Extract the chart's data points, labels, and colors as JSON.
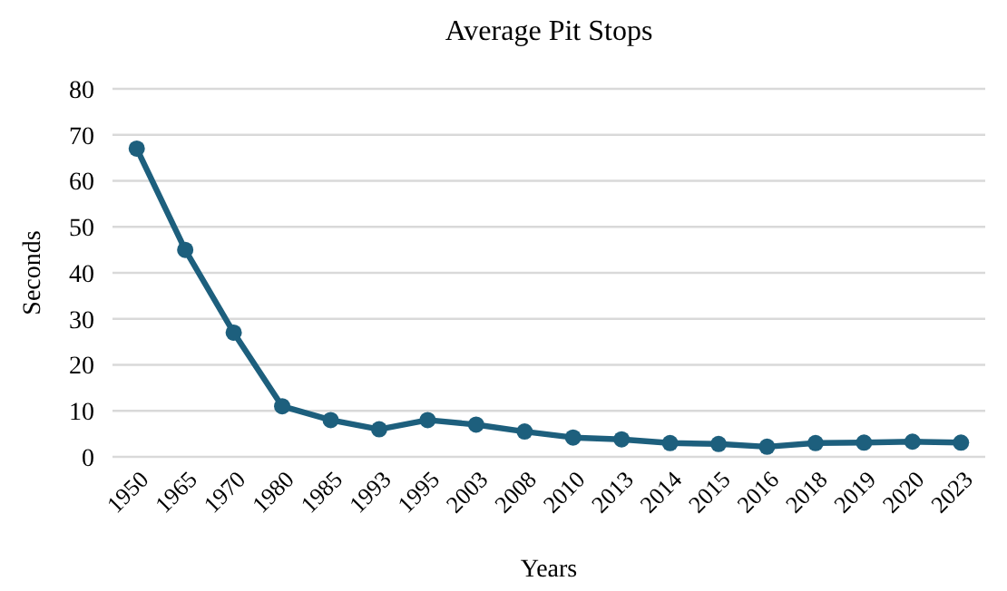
{
  "chart_data": {
    "type": "line",
    "title": "Average Pit Stops",
    "xlabel": "Years",
    "ylabel": "Seconds",
    "categories": [
      "1950",
      "1965",
      "1970",
      "1980",
      "1985",
      "1993",
      "1995",
      "2003",
      "2008",
      "2010",
      "2013",
      "2014",
      "2015",
      "2016",
      "2018",
      "2019",
      "2020",
      "2023"
    ],
    "series": [
      {
        "color": "#1d5f7d",
        "values": [
          67,
          45,
          27,
          11,
          8,
          6,
          8,
          7,
          5.5,
          4.2,
          3.8,
          3,
          2.8,
          2.2,
          3,
          3.1,
          3.3,
          3.1
        ]
      }
    ],
    "ylim": [
      0,
      80
    ],
    "yticks": [
      0,
      10,
      20,
      30,
      40,
      50,
      60,
      70,
      80
    ],
    "grid": "y",
    "marker": "circle",
    "line_style": "solid"
  }
}
